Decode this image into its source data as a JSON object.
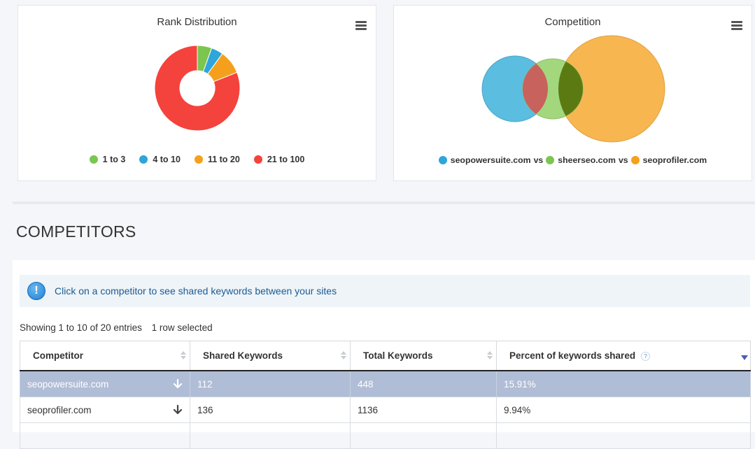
{
  "rank_card": {
    "title": "Rank Distribution",
    "menu_icon": "hamburger-menu-icon"
  },
  "chart_data": {
    "type": "pie",
    "donut": true,
    "categories": [
      "1 to 3",
      "4 to 10",
      "11 to 20",
      "21 to 100"
    ],
    "values": [
      5.5,
      4.5,
      9,
      81
    ],
    "colors": [
      "#7cc550",
      "#2ea5db",
      "#f5a01c",
      "#f4433c"
    ],
    "legend_position": "bottom"
  },
  "competition_card": {
    "title": "Competition",
    "menu_icon": "hamburger-menu-icon",
    "venn": [
      {
        "name": "seopowersuite.com",
        "color": "#2ea5db"
      },
      {
        "name": "sheerseo.com",
        "color": "#7cc550"
      },
      {
        "name": "seoprofiler.com",
        "color": "#f5a01c"
      }
    ],
    "vs_label": "vs"
  },
  "section": {
    "title": "COMPETITORS"
  },
  "info_banner": {
    "icon": "info-exclamation-icon",
    "text": "Click on a competitor to see shared keywords between your sites"
  },
  "table_info": {
    "showing": "Showing 1 to 10 of 20 entries",
    "selected": "1 row selected"
  },
  "table": {
    "headers": [
      "Competitor",
      "Shared Keywords",
      "Total Keywords",
      "Percent of keywords shared"
    ],
    "help_icon": "?",
    "rows": [
      {
        "competitor": "seopowersuite.com",
        "shared": "112",
        "total": "448",
        "percent": "15.91%"
      },
      {
        "competitor": "seoprofiler.com",
        "shared": "136",
        "total": "1136",
        "percent": "9.94%"
      }
    ]
  }
}
